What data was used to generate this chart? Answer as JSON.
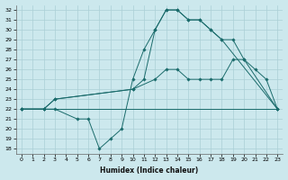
{
  "xlabel": "Humidex (Indice chaleur)",
  "ylabel": "",
  "xlim": [
    -0.5,
    23.5
  ],
  "ylim": [
    17.5,
    32.5
  ],
  "yticks": [
    18,
    19,
    20,
    21,
    22,
    23,
    24,
    25,
    26,
    27,
    28,
    29,
    30,
    31,
    32
  ],
  "xticks": [
    0,
    1,
    2,
    3,
    4,
    5,
    6,
    7,
    8,
    9,
    10,
    11,
    12,
    13,
    14,
    15,
    16,
    17,
    18,
    19,
    20,
    21,
    22,
    23
  ],
  "bg_color": "#cce8ed",
  "grid_color": "#aacfd6",
  "line_color": "#1a6b6b",
  "lines": [
    {
      "x": [
        0,
        23
      ],
      "y": [
        22,
        22
      ],
      "markers": false
    },
    {
      "x": [
        0,
        2,
        3,
        5,
        6,
        7,
        8,
        9,
        10,
        11,
        12,
        13,
        14,
        15,
        16,
        17,
        18,
        19,
        20,
        23
      ],
      "y": [
        22,
        22,
        22,
        21,
        21,
        18,
        19,
        20,
        25,
        28,
        30,
        32,
        32,
        31,
        31,
        30,
        29,
        29,
        27,
        22
      ],
      "markers": true
    },
    {
      "x": [
        0,
        2,
        3,
        10,
        12,
        13,
        14,
        15,
        16,
        17,
        18,
        19,
        20,
        21,
        22,
        23
      ],
      "y": [
        22,
        22,
        23,
        24,
        25,
        26,
        26,
        25,
        25,
        25,
        25,
        27,
        27,
        26,
        25,
        22
      ],
      "markers": true
    },
    {
      "x": [
        0,
        2,
        3,
        10,
        11,
        12,
        13,
        14,
        15,
        16,
        17,
        18,
        23
      ],
      "y": [
        22,
        22,
        23,
        24,
        25,
        30,
        32,
        32,
        31,
        31,
        30,
        29,
        22
      ],
      "markers": true
    }
  ]
}
